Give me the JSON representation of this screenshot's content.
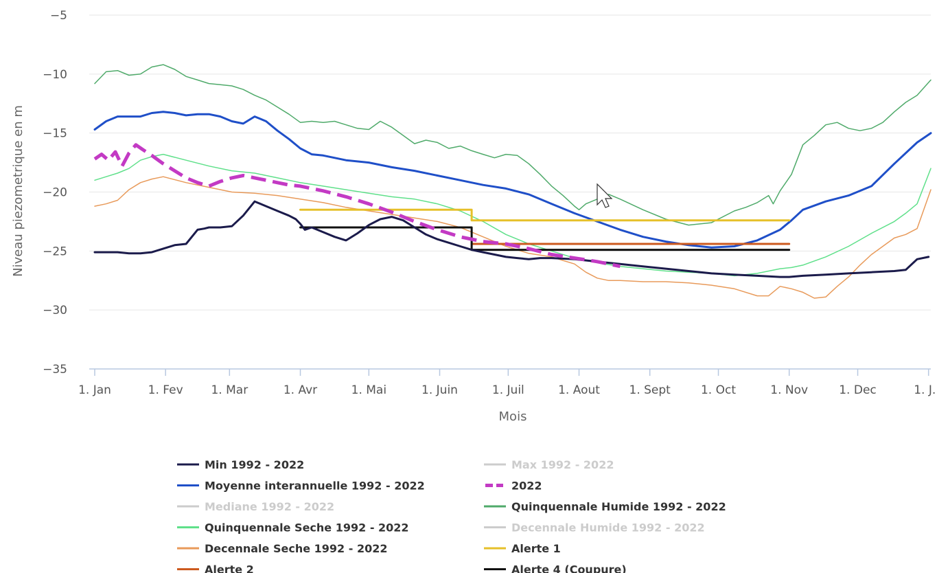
{
  "chart_data": {
    "type": "line",
    "xlabel": "Mois",
    "ylabel": "Niveau piezometrique en m",
    "ylim": [
      -35,
      -5
    ],
    "yticks": [
      -5,
      -10,
      -15,
      -20,
      -25,
      -30,
      -35
    ],
    "xlim": [
      0,
      366
    ],
    "x_unit": "day of year",
    "x_ticks": [
      {
        "label": "1. Jan",
        "x": 0
      },
      {
        "label": "1. Fev",
        "x": 31
      },
      {
        "label": "1. Mar",
        "x": 59
      },
      {
        "label": "1. Avr",
        "x": 90
      },
      {
        "label": "1. Mai",
        "x": 120
      },
      {
        "label": "1. Juin",
        "x": 151
      },
      {
        "label": "1. Juil",
        "x": 181
      },
      {
        "label": "1. Aout",
        "x": 212
      },
      {
        "label": "1. Sept",
        "x": 243
      },
      {
        "label": "1. Oct",
        "x": 273
      },
      {
        "label": "1. Nov",
        "x": 304
      },
      {
        "label": "1. Dec",
        "x": 334
      },
      {
        "label": "1. J...",
        "x": 365
      }
    ],
    "grid": true,
    "legend_placement": "bottom",
    "series": [
      {
        "name": "Min 1992 - 2022",
        "color": "#1b1b4b",
        "visible": true,
        "dash": "solid",
        "width": 3,
        "x": [
          0,
          10,
          15,
          20,
          25,
          30,
          35,
          40,
          45,
          48,
          50,
          55,
          60,
          65,
          70,
          75,
          80,
          85,
          88,
          89,
          90,
          92,
          95,
          100,
          105,
          110,
          115,
          120,
          125,
          130,
          135,
          140,
          145,
          150,
          155,
          160,
          165,
          170,
          175,
          180,
          185,
          190,
          195,
          200,
          210,
          220,
          230,
          240,
          250,
          260,
          270,
          280,
          290,
          300,
          304,
          310,
          320,
          330,
          340,
          350,
          355,
          360,
          365
        ],
        "y": [
          -25.1,
          -25.1,
          -25.2,
          -25.2,
          -25.1,
          -24.8,
          -24.5,
          -24.4,
          -23.2,
          -23.1,
          -23.0,
          -23.0,
          -22.9,
          -22.0,
          -20.8,
          -21.2,
          -21.6,
          -22.0,
          -22.3,
          -22.5,
          -22.7,
          -23.2,
          -23.0,
          -23.4,
          -23.8,
          -24.1,
          -23.5,
          -22.8,
          -22.3,
          -22.1,
          -22.4,
          -23.0,
          -23.6,
          -24.0,
          -24.3,
          -24.6,
          -24.9,
          -25.1,
          -25.3,
          -25.5,
          -25.6,
          -25.7,
          -25.6,
          -25.6,
          -25.7,
          -25.9,
          -26.1,
          -26.3,
          -26.5,
          -26.7,
          -26.9,
          -27.0,
          -27.1,
          -27.2,
          -27.2,
          -27.1,
          -27.0,
          -26.9,
          -26.8,
          -26.7,
          -26.6,
          -25.7,
          -25.5
        ]
      },
      {
        "name": "Max 1992 - 2022",
        "color": "#cccccc",
        "visible": false,
        "dash": "solid",
        "width": 2,
        "x": [],
        "y": []
      },
      {
        "name": "Moyenne interannuelle 1992 - 2022",
        "color": "#1f4fc8",
        "visible": true,
        "dash": "solid",
        "width": 3,
        "x": [
          0,
          5,
          10,
          15,
          20,
          25,
          30,
          35,
          40,
          45,
          50,
          55,
          60,
          65,
          70,
          75,
          80,
          85,
          90,
          95,
          100,
          110,
          120,
          130,
          140,
          150,
          160,
          170,
          180,
          190,
          200,
          210,
          220,
          230,
          240,
          250,
          260,
          270,
          280,
          290,
          300,
          305,
          310,
          320,
          330,
          340,
          350,
          360,
          366
        ],
        "y": [
          -14.7,
          -14.0,
          -13.6,
          -13.6,
          -13.6,
          -13.3,
          -13.2,
          -13.3,
          -13.5,
          -13.4,
          -13.4,
          -13.6,
          -14.0,
          -14.2,
          -13.6,
          -14.0,
          -14.8,
          -15.5,
          -16.3,
          -16.8,
          -16.9,
          -17.3,
          -17.5,
          -17.9,
          -18.2,
          -18.6,
          -19.0,
          -19.4,
          -19.7,
          -20.2,
          -21.0,
          -21.8,
          -22.5,
          -23.2,
          -23.8,
          -24.2,
          -24.5,
          -24.7,
          -24.6,
          -24.1,
          -23.2,
          -22.4,
          -21.5,
          -20.8,
          -20.3,
          -19.5,
          -17.6,
          -15.8,
          -15.0
        ]
      },
      {
        "name": "2022",
        "color": "#c33ac4",
        "visible": true,
        "dash": "dashed",
        "width": 5,
        "x": [
          0,
          3,
          6,
          9,
          12,
          15,
          18,
          21,
          25,
          30,
          35,
          40,
          45,
          50,
          55,
          60,
          65,
          70,
          75,
          80,
          85,
          90,
          95,
          100,
          110,
          120,
          130,
          140,
          150,
          160,
          170,
          180,
          190,
          200,
          210,
          220,
          230
        ],
        "y": [
          -17.2,
          -16.8,
          -17.3,
          -16.6,
          -17.8,
          -16.7,
          -16.0,
          -16.4,
          -16.9,
          -17.6,
          -18.2,
          -18.8,
          -19.2,
          -19.5,
          -19.1,
          -18.8,
          -18.6,
          -18.8,
          -19.0,
          -19.2,
          -19.4,
          -19.5,
          -19.7,
          -19.9,
          -20.4,
          -21.0,
          -21.7,
          -22.5,
          -23.2,
          -23.8,
          -24.2,
          -24.4,
          -24.8,
          -25.3,
          -25.6,
          -25.9,
          -26.3
        ]
      },
      {
        "name": "Mediane 1992 - 2022",
        "color": "#cccccc",
        "visible": false,
        "dash": "solid",
        "width": 2,
        "x": [],
        "y": []
      },
      {
        "name": "Quinquennale Humide 1992 - 2022",
        "color": "#4faa6a",
        "visible": true,
        "dash": "solid",
        "width": 1.5,
        "x": [
          0,
          5,
          10,
          15,
          20,
          25,
          30,
          35,
          40,
          45,
          50,
          55,
          60,
          65,
          70,
          75,
          80,
          85,
          90,
          95,
          100,
          105,
          110,
          115,
          120,
          125,
          130,
          135,
          140,
          145,
          150,
          155,
          160,
          165,
          170,
          175,
          180,
          185,
          190,
          195,
          200,
          205,
          210,
          212,
          215,
          220,
          225,
          230,
          240,
          250,
          260,
          270,
          280,
          285,
          290,
          295,
          297,
          300,
          305,
          310,
          315,
          320,
          325,
          330,
          335,
          340,
          345,
          350,
          355,
          360,
          366
        ],
        "y": [
          -10.8,
          -9.8,
          -9.7,
          -10.1,
          -10.0,
          -9.4,
          -9.2,
          -9.6,
          -10.2,
          -10.5,
          -10.8,
          -10.9,
          -11.0,
          -11.3,
          -11.8,
          -12.2,
          -12.8,
          -13.4,
          -14.1,
          -14.0,
          -14.1,
          -14.0,
          -14.3,
          -14.6,
          -14.7,
          -14.0,
          -14.5,
          -15.2,
          -15.9,
          -15.6,
          -15.8,
          -16.3,
          -16.1,
          -16.5,
          -16.8,
          -17.1,
          -16.8,
          -16.9,
          -17.6,
          -18.5,
          -19.5,
          -20.3,
          -21.2,
          -21.5,
          -21.0,
          -20.6,
          -20.2,
          -20.6,
          -21.5,
          -22.3,
          -22.8,
          -22.6,
          -21.6,
          -21.3,
          -20.9,
          -20.3,
          -21.0,
          -19.9,
          -18.5,
          -16.0,
          -15.2,
          -14.3,
          -14.1,
          -14.6,
          -14.8,
          -14.6,
          -14.1,
          -13.2,
          -12.4,
          -11.8,
          -10.5
        ]
      },
      {
        "name": "Quinquennale Seche 1992 - 2022",
        "color": "#5fe08a",
        "visible": true,
        "dash": "solid",
        "width": 1.5,
        "x": [
          0,
          5,
          10,
          15,
          20,
          25,
          30,
          40,
          50,
          60,
          70,
          80,
          90,
          100,
          110,
          120,
          130,
          140,
          150,
          160,
          170,
          180,
          190,
          200,
          210,
          220,
          230,
          240,
          250,
          260,
          270,
          280,
          290,
          300,
          305,
          310,
          320,
          330,
          340,
          350,
          355,
          360,
          366
        ],
        "y": [
          -19.0,
          -18.7,
          -18.4,
          -18.0,
          -17.3,
          -17.0,
          -16.8,
          -17.3,
          -17.8,
          -18.2,
          -18.4,
          -18.8,
          -19.2,
          -19.5,
          -19.8,
          -20.1,
          -20.4,
          -20.6,
          -21.0,
          -21.6,
          -22.5,
          -23.6,
          -24.4,
          -25.0,
          -25.6,
          -26.0,
          -26.3,
          -26.5,
          -26.7,
          -26.8,
          -26.9,
          -27.1,
          -26.9,
          -26.5,
          -26.4,
          -26.2,
          -25.5,
          -24.6,
          -23.5,
          -22.5,
          -21.8,
          -21.0,
          -18.0
        ]
      },
      {
        "name": "Decennale Humide 1992 - 2022",
        "color": "#cccccc",
        "visible": false,
        "dash": "solid",
        "width": 2,
        "x": [],
        "y": []
      },
      {
        "name": "Decennale Seche 1992 - 2022",
        "color": "#e89a5a",
        "visible": true,
        "dash": "solid",
        "width": 1.5,
        "x": [
          0,
          5,
          10,
          15,
          20,
          25,
          30,
          40,
          50,
          60,
          70,
          80,
          90,
          100,
          110,
          120,
          130,
          140,
          150,
          160,
          170,
          180,
          190,
          200,
          205,
          210,
          215,
          220,
          225,
          230,
          240,
          250,
          260,
          270,
          280,
          290,
          295,
          300,
          305,
          310,
          315,
          320,
          325,
          330,
          335,
          340,
          345,
          350,
          355,
          360,
          366
        ],
        "y": [
          -21.2,
          -21.0,
          -20.7,
          -19.8,
          -19.2,
          -18.9,
          -18.7,
          -19.2,
          -19.6,
          -20.0,
          -20.1,
          -20.3,
          -20.6,
          -20.9,
          -21.3,
          -21.6,
          -21.9,
          -22.2,
          -22.5,
          -23.0,
          -23.8,
          -24.6,
          -25.2,
          -25.5,
          -25.8,
          -26.1,
          -26.8,
          -27.3,
          -27.5,
          -27.5,
          -27.6,
          -27.6,
          -27.7,
          -27.9,
          -28.2,
          -28.8,
          -28.8,
          -28.0,
          -28.2,
          -28.5,
          -29.0,
          -28.9,
          -28.0,
          -27.2,
          -26.2,
          -25.3,
          -24.6,
          -23.9,
          -23.6,
          -23.1,
          -19.8
        ]
      },
      {
        "name": "Alerte 1",
        "color": "#e6c02a",
        "visible": true,
        "dash": "solid",
        "width": 3,
        "x": [
          90,
          165,
          165,
          304
        ],
        "y": [
          -21.5,
          -21.5,
          -22.4,
          -22.4
        ]
      },
      {
        "name": "Alerte 2",
        "color": "#cc5a1e",
        "visible": true,
        "dash": "solid",
        "width": 3,
        "x": [
          165,
          304
        ],
        "y": [
          -24.4,
          -24.4
        ]
      },
      {
        "name": "Alerte 4 (Coupure)",
        "color": "#111111",
        "visible": true,
        "dash": "solid",
        "width": 3,
        "x": [
          90,
          165,
          165,
          304
        ],
        "y": [
          -23.0,
          -23.0,
          -24.9,
          -24.9
        ]
      }
    ]
  }
}
